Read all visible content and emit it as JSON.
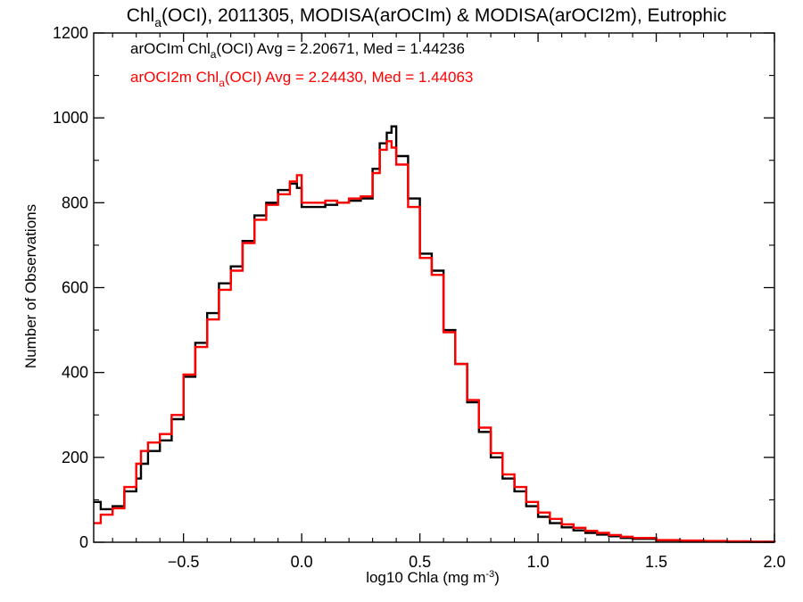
{
  "chart_data": {
    "type": "line",
    "step": true,
    "title": {
      "main": "Chl",
      "sub": "a",
      "rest": "(OCI), 2011305, MODISA(arOCIm) & MODISA(arOCI2m), Eutrophic"
    },
    "xlabel": {
      "main": "log10 Chla (mg m",
      "sup": "-3",
      "close": ")"
    },
    "ylabel": "Number of Observations",
    "xlim": [
      -0.88,
      2.0
    ],
    "ylim": [
      0,
      1200
    ],
    "xticks": [
      -0.5,
      0.0,
      0.5,
      1.0,
      1.5,
      2.0
    ],
    "xtick_labels": [
      "−0.5",
      "0.0",
      "0.5",
      "1.0",
      "1.5",
      "2.0"
    ],
    "yticks": [
      0,
      200,
      400,
      600,
      800,
      1000,
      1200
    ],
    "ytick_labels": [
      "0",
      "200",
      "400",
      "600",
      "800",
      "1000",
      "1200"
    ],
    "legend": [
      {
        "pre": "arOCIm Chl",
        "sub": "a",
        "post": "(OCI) Avg = 2.20671, Med = 1.44236",
        "color": "#000000"
      },
      {
        "pre": "arOCI2m Chl",
        "sub": "a",
        "post": "(OCI) Avg = 2.24430, Med = 1.44063",
        "color": "#ff0000"
      }
    ],
    "series": [
      {
        "color": "#000000",
        "x": [
          -0.88,
          -0.85,
          -0.8,
          -0.75,
          -0.7,
          -0.68,
          -0.65,
          -0.6,
          -0.55,
          -0.5,
          -0.45,
          -0.4,
          -0.35,
          -0.3,
          -0.25,
          -0.2,
          -0.15,
          -0.1,
          -0.05,
          -0.02,
          0.0,
          0.05,
          0.1,
          0.15,
          0.2,
          0.25,
          0.3,
          0.33,
          0.36,
          0.38,
          0.4,
          0.45,
          0.5,
          0.55,
          0.6,
          0.65,
          0.7,
          0.75,
          0.8,
          0.85,
          0.9,
          0.95,
          1.0,
          1.05,
          1.1,
          1.15,
          1.2,
          1.25,
          1.3,
          1.35,
          1.4,
          1.5,
          1.6,
          1.7,
          1.8,
          1.9,
          2.0
        ],
        "y": [
          95,
          78,
          85,
          120,
          150,
          185,
          215,
          240,
          290,
          390,
          470,
          540,
          610,
          650,
          710,
          770,
          800,
          830,
          845,
          835,
          790,
          790,
          795,
          800,
          805,
          810,
          880,
          940,
          965,
          980,
          910,
          810,
          680,
          640,
          500,
          420,
          330,
          260,
          200,
          150,
          120,
          85,
          60,
          45,
          35,
          28,
          22,
          18,
          14,
          10,
          8,
          4,
          3,
          2,
          1,
          1,
          0
        ]
      },
      {
        "color": "#ff0000",
        "x": [
          -0.88,
          -0.85,
          -0.8,
          -0.75,
          -0.7,
          -0.68,
          -0.65,
          -0.6,
          -0.55,
          -0.5,
          -0.45,
          -0.4,
          -0.35,
          -0.3,
          -0.25,
          -0.2,
          -0.15,
          -0.1,
          -0.05,
          -0.02,
          0.0,
          0.05,
          0.1,
          0.15,
          0.2,
          0.25,
          0.3,
          0.33,
          0.36,
          0.38,
          0.4,
          0.45,
          0.5,
          0.55,
          0.6,
          0.65,
          0.7,
          0.75,
          0.8,
          0.85,
          0.9,
          0.95,
          1.0,
          1.05,
          1.1,
          1.15,
          1.2,
          1.25,
          1.3,
          1.35,
          1.4,
          1.5,
          1.6,
          1.7,
          1.8,
          1.9,
          2.0
        ],
        "y": [
          45,
          65,
          80,
          130,
          185,
          215,
          235,
          255,
          300,
          395,
          460,
          525,
          595,
          640,
          705,
          760,
          795,
          820,
          850,
          865,
          800,
          800,
          805,
          800,
          810,
          815,
          870,
          925,
          945,
          930,
          890,
          790,
          670,
          630,
          495,
          420,
          335,
          270,
          210,
          160,
          130,
          95,
          70,
          55,
          42,
          34,
          27,
          22,
          17,
          13,
          10,
          5,
          4,
          3,
          2,
          1,
          0
        ]
      }
    ]
  }
}
